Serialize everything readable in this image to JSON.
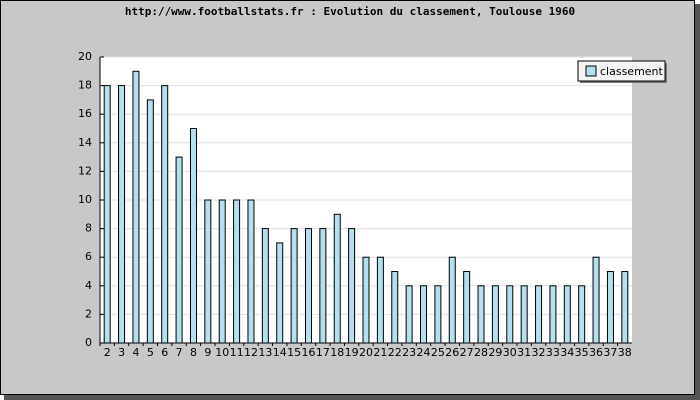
{
  "chart_data": {
    "type": "bar",
    "title": "http://www.footballstats.fr : Evolution du classement, Toulouse 1960",
    "categories": [
      "2",
      "3",
      "4",
      "5",
      "6",
      "7",
      "8",
      "9",
      "10",
      "11",
      "12",
      "13",
      "14",
      "15",
      "16",
      "17",
      "18",
      "19",
      "20",
      "21",
      "22",
      "23",
      "24",
      "25",
      "26",
      "27",
      "28",
      "29",
      "30",
      "31",
      "32",
      "33",
      "34",
      "35",
      "36",
      "37",
      "38"
    ],
    "series": [
      {
        "name": "classement",
        "color": "#b4e0ee",
        "values": [
          18,
          18,
          19,
          17,
          18,
          13,
          15,
          10,
          10,
          10,
          10,
          8,
          7,
          8,
          8,
          8,
          9,
          8,
          6,
          6,
          5,
          4,
          4,
          4,
          6,
          5,
          4,
          4,
          4,
          4,
          4,
          4,
          4,
          4,
          6,
          5,
          5
        ]
      }
    ],
    "ylim": [
      0,
      20
    ],
    "yticks": [
      0,
      2,
      4,
      6,
      8,
      10,
      12,
      14,
      16,
      18,
      20
    ],
    "grid": true,
    "legend": "top-right"
  }
}
